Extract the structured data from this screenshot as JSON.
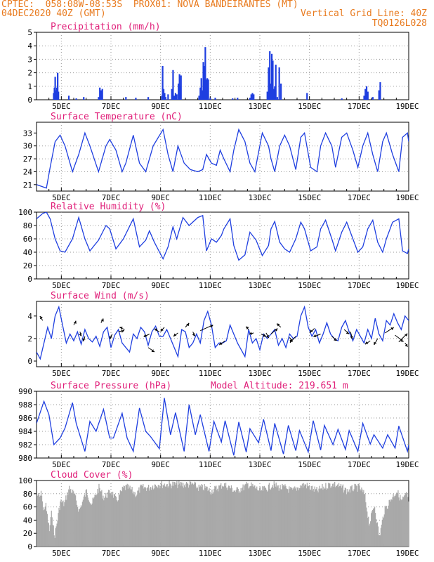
{
  "header": {
    "line1_left": "CPTEC:  058:08W-08:53S  PROX01: NOVA BANDEIRANTES (MT)",
    "line2_left": "04DEC2020 40Z (GMT)",
    "line2_right": "Vertical Grid Line: 40Z",
    "line3_right": "TQ0126L028"
  },
  "colors": {
    "header": "#e87a1e",
    "title": "#e0207a",
    "series": "#1f3fe0",
    "cloud": "#a9a9a9",
    "wind_arrow": "#000000"
  },
  "x_axis_labels": [
    "5DEC",
    "7DEC",
    "9DEC",
    "11DEC",
    "13DEC",
    "15DEC",
    "17DEC",
    "19DEC"
  ],
  "chart_data": [
    {
      "type": "bar",
      "title": "Precipitation (mm/h)",
      "yticks": [
        "0",
        "1",
        "2",
        "3",
        "4",
        "5"
      ],
      "ylim": [
        0,
        5
      ],
      "x_range_days": [
        4.0,
        19.0
      ],
      "bars": [
        [
          4.69,
          0.5
        ],
        [
          4.72,
          0.9
        ],
        [
          4.75,
          1.7
        ],
        [
          4.78,
          0.7
        ],
        [
          4.82,
          0.9
        ],
        [
          4.85,
          2.0
        ],
        [
          4.88,
          0.6
        ],
        [
          5.3,
          0.3
        ],
        [
          5.6,
          0.1
        ],
        [
          5.9,
          0.2
        ],
        [
          6.5,
          0.2
        ],
        [
          6.55,
          0.9
        ],
        [
          6.6,
          0.7
        ],
        [
          6.65,
          0.8
        ],
        [
          7.6,
          0.2
        ],
        [
          8.0,
          0.15
        ],
        [
          8.5,
          0.2
        ],
        [
          9.05,
          0.3
        ],
        [
          9.08,
          2.5
        ],
        [
          9.12,
          0.8
        ],
        [
          9.16,
          0.5
        ],
        [
          9.2,
          0.2
        ],
        [
          9.3,
          0.4
        ],
        [
          9.45,
          0.8
        ],
        [
          9.5,
          2.2
        ],
        [
          9.55,
          0.3
        ],
        [
          9.6,
          0.5
        ],
        [
          9.65,
          0.4
        ],
        [
          9.72,
          1.2
        ],
        [
          9.76,
          1.9
        ],
        [
          9.79,
          1.0
        ],
        [
          9.82,
          1.8
        ],
        [
          10.55,
          0.3
        ],
        [
          10.6,
          0.9
        ],
        [
          10.64,
          1.6
        ],
        [
          10.68,
          0.7
        ],
        [
          10.72,
          2.8
        ],
        [
          10.76,
          2.5
        ],
        [
          10.8,
          3.9
        ],
        [
          10.84,
          1.5
        ],
        [
          10.88,
          1.6
        ],
        [
          10.92,
          1.5
        ],
        [
          11.0,
          0.15
        ],
        [
          11.2,
          0.15
        ],
        [
          11.9,
          0.1
        ],
        [
          12.1,
          0.15
        ],
        [
          12.6,
          0.15
        ],
        [
          12.65,
          0.4
        ],
        [
          12.7,
          0.5
        ],
        [
          12.75,
          0.4
        ],
        [
          13.3,
          0.6
        ],
        [
          13.35,
          2.4
        ],
        [
          13.4,
          3.6
        ],
        [
          13.44,
          1.2
        ],
        [
          13.48,
          3.4
        ],
        [
          13.52,
          2.9
        ],
        [
          13.56,
          0.8
        ],
        [
          13.6,
          1.0
        ],
        [
          13.64,
          2.6
        ],
        [
          13.7,
          0.2
        ],
        [
          13.78,
          2.4
        ],
        [
          13.85,
          1.2
        ],
        [
          14.9,
          0.5
        ],
        [
          16.3,
          0.1
        ],
        [
          17.2,
          0.3
        ],
        [
          17.25,
          0.8
        ],
        [
          17.3,
          1.0
        ],
        [
          17.35,
          0.6
        ],
        [
          17.55,
          0.2
        ],
        [
          17.8,
          0.7
        ],
        [
          17.85,
          1.3
        ]
      ]
    },
    {
      "type": "line",
      "title": "Surface Temperature (nC)",
      "yticks": [
        "21",
        "24",
        "27",
        "30",
        "33"
      ],
      "ylim": [
        19.5,
        35.5
      ],
      "x_range_days": [
        4.0,
        19.0
      ],
      "x": [
        4.0,
        4.4,
        4.55,
        4.75,
        4.95,
        5.15,
        5.45,
        5.7,
        5.95,
        6.15,
        6.5,
        6.8,
        6.95,
        7.2,
        7.45,
        7.6,
        7.9,
        8.15,
        8.4,
        8.55,
        8.7,
        9.1,
        9.3,
        9.5,
        9.7,
        9.95,
        10.2,
        10.5,
        10.7,
        10.85,
        11.05,
        11.25,
        11.4,
        11.55,
        11.8,
        11.95,
        12.15,
        12.4,
        12.6,
        12.8,
        13.1,
        13.35,
        13.45,
        13.6,
        13.8,
        14.0,
        14.2,
        14.45,
        14.65,
        14.8,
        15.05,
        15.3,
        15.45,
        15.65,
        15.9,
        16.05,
        16.3,
        16.5,
        16.75,
        16.95,
        17.15,
        17.35,
        17.55,
        17.75,
        17.95,
        18.1,
        18.35,
        18.6,
        18.75,
        18.95,
        19.0
      ],
      "y": [
        21.0,
        20.2,
        25.0,
        31.0,
        32.5,
        30.0,
        24.0,
        28.0,
        33.0,
        30.0,
        24.0,
        30.0,
        31.5,
        29.0,
        24.0,
        26.0,
        32.5,
        26.0,
        24.0,
        27.0,
        30.0,
        33.8,
        28.0,
        24.0,
        30.0,
        26.0,
        24.5,
        24.0,
        24.5,
        28.0,
        26.0,
        25.5,
        29.0,
        27.0,
        24.0,
        29.0,
        33.8,
        31.0,
        26.0,
        24.0,
        33.0,
        30.0,
        27.0,
        24.0,
        30.0,
        32.5,
        30.0,
        24.5,
        32.0,
        33.0,
        25.0,
        24.0,
        30.0,
        33.0,
        30.0,
        25.0,
        32.0,
        33.0,
        29.0,
        25.0,
        30.0,
        33.0,
        28.0,
        24.0,
        31.0,
        33.0,
        28.0,
        24.0,
        32.0,
        33.0,
        31.0
      ]
    },
    {
      "type": "line",
      "title": "Relative Humidity (%)",
      "yticks": [
        "0",
        "20",
        "40",
        "60",
        "80",
        "100"
      ],
      "ylim": [
        0,
        100
      ],
      "x_range_days": [
        4.0,
        19.0
      ],
      "x": [
        4.0,
        4.25,
        4.4,
        4.55,
        4.75,
        4.95,
        5.15,
        5.45,
        5.7,
        5.95,
        6.15,
        6.5,
        6.8,
        6.95,
        7.2,
        7.5,
        7.9,
        8.15,
        8.4,
        8.55,
        8.75,
        9.1,
        9.3,
        9.5,
        9.65,
        9.9,
        10.15,
        10.5,
        10.7,
        10.85,
        11.05,
        11.25,
        11.45,
        11.55,
        11.8,
        11.95,
        12.15,
        12.4,
        12.6,
        12.85,
        13.1,
        13.35,
        13.45,
        13.6,
        13.8,
        14.0,
        14.2,
        14.45,
        14.65,
        14.8,
        15.05,
        15.3,
        15.45,
        15.65,
        15.9,
        16.05,
        16.3,
        16.5,
        16.75,
        16.95,
        17.15,
        17.35,
        17.55,
        17.75,
        17.95,
        18.1,
        18.35,
        18.6,
        18.75,
        18.95,
        19.0
      ],
      "y": [
        90,
        98,
        100,
        90,
        60,
        42,
        40,
        60,
        92,
        60,
        42,
        58,
        80,
        75,
        45,
        60,
        90,
        48,
        58,
        72,
        55,
        30,
        48,
        78,
        60,
        92,
        80,
        92,
        95,
        42,
        60,
        55,
        65,
        75,
        90,
        50,
        28,
        36,
        70,
        58,
        35,
        50,
        75,
        86,
        55,
        45,
        40,
        60,
        85,
        75,
        42,
        48,
        75,
        88,
        60,
        42,
        70,
        85,
        60,
        40,
        48,
        75,
        88,
        55,
        40,
        60,
        85,
        90,
        42,
        38,
        45
      ]
    },
    {
      "type": "line",
      "title": "Surface Wind (m/s)",
      "yticks": [
        "0",
        "2",
        "4"
      ],
      "ylim": [
        -0.5,
        5.3
      ],
      "x_range_days": [
        4.0,
        19.0
      ],
      "x": [
        4.0,
        4.15,
        4.3,
        4.45,
        4.6,
        4.75,
        4.9,
        5.05,
        5.2,
        5.35,
        5.5,
        5.65,
        5.8,
        5.95,
        6.1,
        6.25,
        6.4,
        6.55,
        6.7,
        6.85,
        7.0,
        7.15,
        7.3,
        7.45,
        7.6,
        7.75,
        7.9,
        8.05,
        8.2,
        8.35,
        8.5,
        8.65,
        8.8,
        8.95,
        9.1,
        9.25,
        9.4,
        9.55,
        9.7,
        9.85,
        10.0,
        10.15,
        10.3,
        10.45,
        10.6,
        10.75,
        10.9,
        11.05,
        11.2,
        11.35,
        11.5,
        11.65,
        11.8,
        11.95,
        12.1,
        12.25,
        12.4,
        12.55,
        12.7,
        12.85,
        13.0,
        13.15,
        13.3,
        13.45,
        13.6,
        13.75,
        13.9,
        14.05,
        14.2,
        14.35,
        14.5,
        14.65,
        14.8,
        14.95,
        15.1,
        15.25,
        15.4,
        15.55,
        15.7,
        15.85,
        16.0,
        16.15,
        16.3,
        16.45,
        16.6,
        16.75,
        16.9,
        17.05,
        17.2,
        17.35,
        17.5,
        17.65,
        17.8,
        17.95,
        18.1,
        18.25,
        18.4,
        18.55,
        18.7,
        18.85,
        19.0
      ],
      "y": [
        0.8,
        0.2,
        1.6,
        3.0,
        2.0,
        4.0,
        4.8,
        3.2,
        1.6,
        2.4,
        1.8,
        2.6,
        1.5,
        2.8,
        2.0,
        1.7,
        2.2,
        1.3,
        2.6,
        3.0,
        1.2,
        2.3,
        2.8,
        1.6,
        1.2,
        0.8,
        2.4,
        2.0,
        3.0,
        2.6,
        1.4,
        2.6,
        3.1,
        2.2,
        2.2,
        2.8,
        2.0,
        1.2,
        0.4,
        2.8,
        2.6,
        1.2,
        1.6,
        2.4,
        1.6,
        3.6,
        4.4,
        3.2,
        1.2,
        1.6,
        1.6,
        1.8,
        3.2,
        2.4,
        1.6,
        1.0,
        0.4,
        2.8,
        1.6,
        2.0,
        1.0,
        2.4,
        2.0,
        2.4,
        2.8,
        1.4,
        2.0,
        1.2,
        2.4,
        2.0,
        2.2,
        4.0,
        4.8,
        3.0,
        2.2,
        2.8,
        1.6,
        2.4,
        3.4,
        2.4,
        2.0,
        1.8,
        3.0,
        3.6,
        2.6,
        1.8,
        2.8,
        2.2,
        1.6,
        2.8,
        2.0,
        3.8,
        2.4,
        1.8,
        3.6,
        3.2,
        4.2,
        3.4,
        2.8,
        4.0,
        3.6
      ]
    },
    {
      "type": "line",
      "title": "Surface Pressure (hPa)",
      "subtitle": "Model Altitude: 219.651 m",
      "yticks": [
        "980",
        "982",
        "984",
        "986",
        "988",
        "990"
      ],
      "ylim": [
        980,
        990
      ],
      "x_range_days": [
        4.0,
        19.0
      ],
      "x": [
        4.0,
        4.3,
        4.5,
        4.7,
        4.95,
        5.15,
        5.45,
        5.6,
        5.95,
        6.15,
        6.4,
        6.7,
        6.95,
        7.1,
        7.45,
        7.65,
        7.9,
        8.15,
        8.4,
        8.6,
        8.95,
        9.15,
        9.4,
        9.6,
        9.95,
        10.15,
        10.4,
        10.6,
        10.95,
        11.15,
        11.45,
        11.6,
        11.95,
        12.15,
        12.45,
        12.6,
        12.95,
        13.15,
        13.45,
        13.6,
        13.95,
        14.15,
        14.45,
        14.6,
        14.95,
        15.15,
        15.45,
        15.6,
        15.95,
        16.15,
        16.45,
        16.6,
        16.95,
        17.15,
        17.45,
        17.6,
        17.95,
        18.15,
        18.45,
        18.6,
        18.95,
        19.0
      ],
      "y": [
        985.2,
        988.5,
        986.5,
        982.0,
        983.0,
        984.5,
        988.3,
        985.2,
        981.0,
        985.5,
        984.0,
        987.3,
        983.0,
        983.0,
        986.7,
        983.0,
        981.0,
        987.5,
        984.0,
        983.2,
        981.4,
        989.0,
        983.5,
        986.8,
        981.0,
        988.0,
        983.5,
        986.5,
        981.0,
        985.5,
        982.4,
        985.6,
        980.4,
        985.4,
        980.9,
        984.4,
        982.3,
        985.8,
        981.1,
        985.2,
        980.6,
        984.9,
        981.1,
        984.1,
        980.9,
        985.6,
        981.2,
        984.9,
        982.0,
        984.3,
        981.3,
        984.1,
        981.0,
        985.2,
        982.1,
        983.5,
        981.5,
        983.5,
        981.5,
        984.8,
        981.0,
        982.0
      ]
    },
    {
      "type": "bar",
      "title": "Cloud Cover (%)",
      "yticks": [
        "0",
        "20",
        "40",
        "60",
        "80",
        "100"
      ],
      "ylim": [
        0,
        100
      ],
      "x_range_days": [
        4.0,
        19.0
      ],
      "profile_x": [
        4.0,
        4.1,
        4.2,
        4.25,
        4.35,
        4.5,
        4.6,
        4.7,
        4.8,
        4.95,
        5.1,
        5.3,
        5.5,
        5.7,
        6.0,
        6.2,
        6.5,
        6.7,
        7.0,
        7.2,
        7.5,
        7.7,
        8.0,
        8.2,
        8.5,
        8.8,
        9.0,
        9.2,
        9.4,
        9.6,
        9.8,
        10.0,
        10.3,
        10.5,
        10.8,
        11.0,
        11.3,
        11.5,
        11.8,
        12.0,
        12.3,
        12.5,
        12.8,
        13.0,
        13.3,
        13.5,
        13.8,
        14.0,
        14.3,
        14.5,
        14.8,
        15.0,
        15.3,
        15.5,
        15.8,
        16.0,
        16.3,
        16.5,
        16.8,
        17.0,
        17.2,
        17.4,
        17.6,
        17.8,
        18.0,
        18.3,
        18.5,
        18.7,
        18.9,
        19.0
      ],
      "profile_y": [
        85,
        80,
        88,
        60,
        70,
        30,
        60,
        20,
        40,
        75,
        70,
        95,
        85,
        60,
        90,
        70,
        95,
        80,
        90,
        75,
        95,
        95,
        85,
        95,
        95,
        100,
        100,
        100,
        100,
        100,
        100,
        100,
        100,
        95,
        95,
        90,
        95,
        100,
        95,
        90,
        95,
        100,
        95,
        90,
        95,
        100,
        95,
        95,
        90,
        95,
        100,
        95,
        90,
        95,
        100,
        100,
        95,
        90,
        95,
        95,
        85,
        40,
        70,
        20,
        60,
        80,
        90,
        75,
        85,
        70
      ]
    }
  ]
}
